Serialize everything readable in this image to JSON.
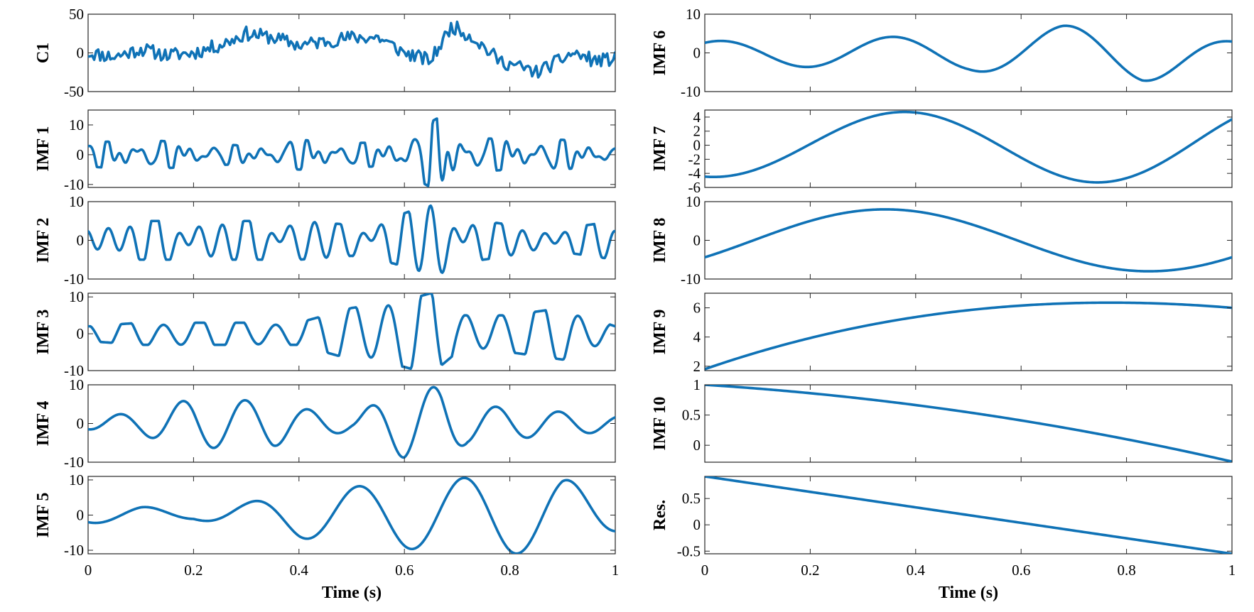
{
  "chart_data": {
    "type": "line",
    "line_color": "#0f72b6",
    "grid": false,
    "panels": [
      {
        "label": "C1",
        "column": "left",
        "row": 0,
        "xlim": [
          0,
          1
        ],
        "ylim": [
          -50,
          50
        ],
        "yticks": [
          50,
          0,
          -50
        ],
        "ytick_labels": [
          "50",
          "0",
          "-50"
        ],
        "kind": "noise",
        "seed": 11,
        "env": [
          [
            0,
            0
          ],
          [
            0.05,
            -5
          ],
          [
            0.1,
            5
          ],
          [
            0.15,
            -3
          ],
          [
            0.2,
            0
          ],
          [
            0.25,
            10
          ],
          [
            0.3,
            25
          ],
          [
            0.35,
            20
          ],
          [
            0.4,
            10
          ],
          [
            0.45,
            15
          ],
          [
            0.5,
            20
          ],
          [
            0.55,
            20
          ],
          [
            0.6,
            0
          ],
          [
            0.65,
            -10
          ],
          [
            0.69,
            35
          ],
          [
            0.73,
            20
          ],
          [
            0.78,
            -10
          ],
          [
            0.85,
            -25
          ],
          [
            0.88,
            -15
          ],
          [
            0.92,
            0
          ],
          [
            0.96,
            -10
          ],
          [
            1,
            -8
          ]
        ],
        "amp": 9
      },
      {
        "label": "IMF 1",
        "column": "left",
        "row": 1,
        "xlim": [
          0,
          1
        ],
        "ylim": [
          -11,
          15
        ],
        "yticks": [
          10,
          0,
          -10
        ],
        "ytick_labels": [
          "10",
          "0",
          "-10"
        ],
        "kind": "osc",
        "npts": 600,
        "comps": [
          [
            0.61,
            0
          ],
          [
            0.71,
            1.3
          ],
          [
            0.97,
            2.1
          ],
          [
            0.43,
            4.0
          ]
        ],
        "amp": [
          [
            0,
            4
          ],
          [
            0.1,
            5
          ],
          [
            0.2,
            4
          ],
          [
            0.3,
            3
          ],
          [
            0.4,
            5
          ],
          [
            0.5,
            4
          ],
          [
            0.55,
            4
          ],
          [
            0.6,
            6
          ],
          [
            0.68,
            14
          ],
          [
            0.71,
            6
          ],
          [
            0.8,
            5
          ],
          [
            0.9,
            5
          ],
          [
            1,
            3
          ]
        ],
        "offset": 0
      },
      {
        "label": "IMF 2",
        "column": "left",
        "row": 2,
        "xlim": [
          0,
          1
        ],
        "ylim": [
          -10,
          10
        ],
        "yticks": [
          10,
          0,
          -10
        ],
        "ytick_labels": [
          "10",
          "0",
          "-10"
        ],
        "kind": "osc",
        "npts": 500,
        "comps": [
          [
            0.34,
            0.3
          ],
          [
            0.55,
            2.2
          ],
          [
            0.22,
            4.7
          ]
        ],
        "amp": [
          [
            0,
            5
          ],
          [
            0.1,
            5
          ],
          [
            0.2,
            5
          ],
          [
            0.3,
            5
          ],
          [
            0.4,
            5
          ],
          [
            0.5,
            4
          ],
          [
            0.58,
            6
          ],
          [
            0.66,
            10
          ],
          [
            0.7,
            6
          ],
          [
            0.8,
            4
          ],
          [
            0.9,
            3
          ],
          [
            1,
            5
          ]
        ],
        "offset": 0
      },
      {
        "label": "IMF 3",
        "column": "left",
        "row": 3,
        "xlim": [
          0,
          1
        ],
        "ylim": [
          -10,
          11
        ],
        "yticks": [
          10,
          0,
          -10
        ],
        "ytick_labels": [
          "10",
          "0",
          "-10"
        ],
        "kind": "osc",
        "npts": 500,
        "comps": [
          [
            0.75,
            1.6
          ],
          [
            0.25,
            3.1
          ]
        ],
        "amp": [
          [
            0,
            2
          ],
          [
            0.1,
            3
          ],
          [
            0.2,
            3
          ],
          [
            0.3,
            3
          ],
          [
            0.4,
            3
          ],
          [
            0.45,
            5
          ],
          [
            0.5,
            7
          ],
          [
            0.6,
            9
          ],
          [
            0.65,
            11
          ],
          [
            0.7,
            5
          ],
          [
            0.8,
            5
          ],
          [
            0.9,
            7
          ],
          [
            1,
            2
          ]
        ],
        "offset": 0
      },
      {
        "label": "IMF 4",
        "column": "left",
        "row": 4,
        "xlim": [
          0,
          1
        ],
        "ylim": [
          -10,
          10
        ],
        "yticks": [
          10,
          0,
          -10
        ],
        "ytick_labels": [
          "10",
          "0",
          "-10"
        ],
        "kind": "osc",
        "npts": 500,
        "comps": [
          [
            1.0,
            4.7
          ]
        ],
        "freq": 8.4,
        "amp": [
          [
            0,
            1.5
          ],
          [
            0.1,
            3
          ],
          [
            0.2,
            6.5
          ],
          [
            0.3,
            6
          ],
          [
            0.35,
            6
          ],
          [
            0.4,
            4
          ],
          [
            0.5,
            2
          ],
          [
            0.6,
            9
          ],
          [
            0.67,
            9.5
          ],
          [
            0.72,
            5
          ],
          [
            0.8,
            4
          ],
          [
            0.9,
            3
          ],
          [
            1,
            2
          ]
        ],
        "offset": 0
      },
      {
        "label": "IMF 5",
        "column": "left",
        "row": 5,
        "xlim": [
          0,
          1
        ],
        "ylim": [
          -11,
          11
        ],
        "yticks": [
          10,
          0,
          -10
        ],
        "ytick_labels": [
          "10",
          "0",
          "-10"
        ],
        "kind": "osc",
        "npts": 500,
        "comps": [
          [
            1.0,
            4.3
          ]
        ],
        "freq": 5.0,
        "amp": [
          [
            0,
            2.2
          ],
          [
            0.1,
            2.4
          ],
          [
            0.2,
            1.2
          ],
          [
            0.3,
            3.5
          ],
          [
            0.4,
            6.5
          ],
          [
            0.5,
            8
          ],
          [
            0.6,
            9.5
          ],
          [
            0.7,
            10.5
          ],
          [
            0.8,
            11
          ],
          [
            0.9,
            10.5
          ],
          [
            1,
            5
          ]
        ],
        "offset": 0
      },
      {
        "label": "IMF 6",
        "column": "right",
        "row": 0,
        "xlim": [
          0,
          1
        ],
        "ylim": [
          -10,
          10
        ],
        "yticks": [
          10,
          0,
          -10
        ],
        "ytick_labels": [
          "10",
          "0",
          "-10"
        ],
        "kind": "osc",
        "npts": 400,
        "comps": [
          [
            1.0,
            1.05
          ]
        ],
        "freq": 3.05,
        "amp": [
          [
            0,
            3
          ],
          [
            0.15,
            3.5
          ],
          [
            0.3,
            4
          ],
          [
            0.5,
            4.5
          ],
          [
            0.68,
            7
          ],
          [
            0.83,
            7.5
          ],
          [
            1,
            3
          ]
        ],
        "offset": 0
      },
      {
        "label": "IMF 7",
        "column": "right",
        "row": 1,
        "xlim": [
          0,
          1
        ],
        "ylim": [
          -6,
          5
        ],
        "yticks": [
          4,
          2,
          0,
          -2,
          -4,
          -6
        ],
        "ytick_labels": [
          "4",
          "2",
          "0",
          "-2",
          "-4",
          "-6"
        ],
        "kind": "osc",
        "npts": 400,
        "comps": [
          [
            1.0,
            -1.7
          ]
        ],
        "freq": 1.38,
        "amp": [
          [
            0,
            4.5
          ],
          [
            0.5,
            4.8
          ],
          [
            1,
            5.8
          ]
        ],
        "offset": 0
      },
      {
        "label": "IMF 8",
        "column": "right",
        "row": 2,
        "xlim": [
          0,
          1
        ],
        "ylim": [
          -10,
          10
        ],
        "yticks": [
          10,
          0,
          -10
        ],
        "ytick_labels": [
          "10",
          "0",
          "-10"
        ],
        "kind": "osc",
        "npts": 400,
        "comps": [
          [
            1.0,
            -0.58
          ]
        ],
        "freq": 1.0,
        "amp": [
          [
            0,
            8
          ],
          [
            1,
            8
          ]
        ],
        "offset": 0
      },
      {
        "label": "IMF 9",
        "column": "right",
        "row": 3,
        "xlim": [
          0,
          1
        ],
        "ylim": [
          1.7,
          7
        ],
        "yticks": [
          6,
          4,
          2
        ],
        "ytick_labels": [
          "6",
          "4",
          "2"
        ],
        "kind": "poly",
        "coef": [
          1.8,
          12.5,
          -9.4,
          1.1
        ]
      },
      {
        "label": "IMF 10",
        "column": "right",
        "row": 4,
        "xlim": [
          0,
          1
        ],
        "ylim": [
          -0.28,
          1
        ],
        "yticks": [
          1,
          0.5,
          0
        ],
        "ytick_labels": [
          "1",
          "0.5",
          "0"
        ],
        "kind": "poly",
        "coef": [
          1.0,
          -0.55,
          -0.72
        ]
      },
      {
        "label": "Res.",
        "column": "right",
        "row": 5,
        "xlim": [
          0,
          1
        ],
        "ylim": [
          -0.55,
          0.92
        ],
        "yticks": [
          0.5,
          0,
          -0.5
        ],
        "ytick_labels": [
          "0.5",
          "0",
          "-0.5"
        ],
        "kind": "poly",
        "coef": [
          0.92,
          -1.47
        ]
      }
    ],
    "xticks": [
      0,
      0.2,
      0.4,
      0.6,
      0.8,
      1
    ],
    "xtick_labels": [
      "0",
      "0.2",
      "0.4",
      "0.6",
      "0.8",
      "1"
    ],
    "xlabel": "Time (s)"
  }
}
